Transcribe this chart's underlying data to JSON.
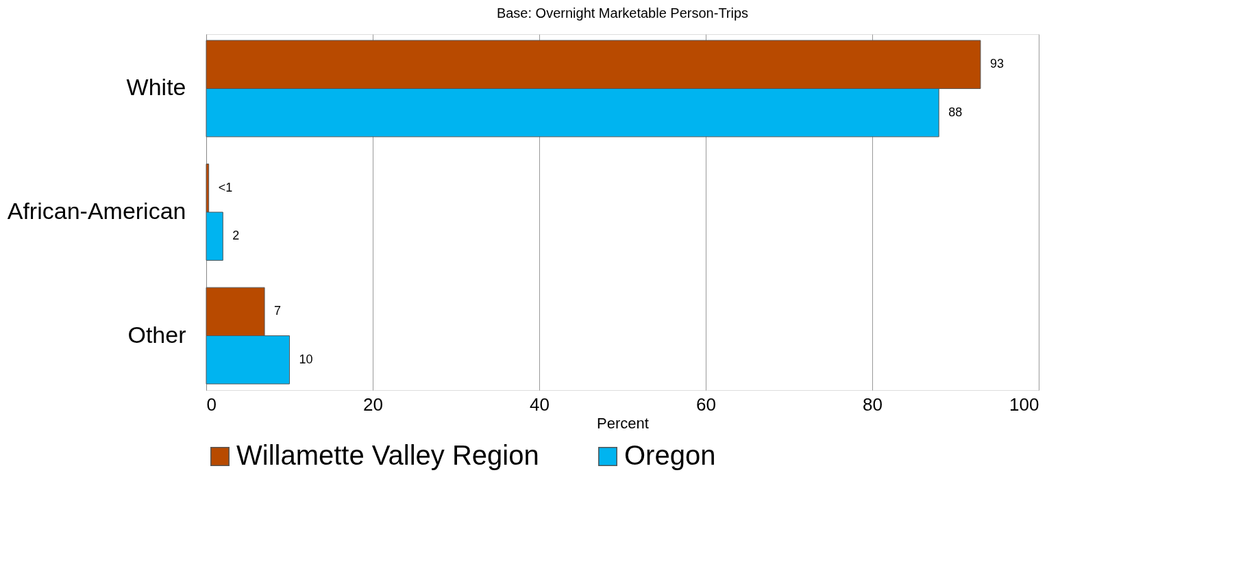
{
  "chart_data": {
    "type": "bar",
    "orientation": "horizontal",
    "title": "Base: Overnight Marketable Person-Trips",
    "xlabel": "Percent",
    "categories": [
      "White",
      "African-American",
      "Other"
    ],
    "series": [
      {
        "name": "Willamette Valley Region",
        "color": "#b84a00",
        "values": [
          93,
          0.3,
          7
        ],
        "value_labels": [
          "93",
          "<1",
          "7"
        ]
      },
      {
        "name": "Oregon",
        "color": "#00b4f0",
        "values": [
          88,
          2,
          10
        ],
        "value_labels": [
          "88",
          "2",
          "10"
        ]
      }
    ],
    "xlim": [
      0,
      100
    ],
    "xticks": [
      0,
      20,
      40,
      60,
      80,
      100
    ],
    "grid": "x",
    "legend": "bottom"
  }
}
